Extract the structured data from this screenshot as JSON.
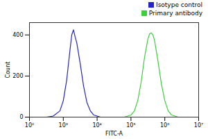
{
  "chart_data": {
    "type": "line",
    "x_label": "FITC-A",
    "y_label": "Count",
    "log": "x",
    "legend": "top-right",
    "xlim": [
      100,
      10000000
    ],
    "xticks": [
      {
        "value": 100,
        "label": "10²"
      },
      {
        "value": 1000,
        "label": "10³"
      },
      {
        "value": 10000,
        "label": "10⁴"
      },
      {
        "value": 100000,
        "label": "10⁵"
      },
      {
        "value": 1000000,
        "label": "10⁶"
      },
      {
        "value": 10000000,
        "label": "10⁷"
      }
    ],
    "ylim": [
      0,
      460
    ],
    "yticks": [
      0,
      200,
      400
    ],
    "series": [
      {
        "name": "Isotype control",
        "color": "#2424c8",
        "x": [
          316,
          501,
          794,
          1000,
          1259,
          1585,
          1778,
          1995,
          2239,
          2512,
          3162,
          3981,
          5012,
          6310,
          7943,
          12589
        ],
        "values": [
          0,
          5,
          30,
          80,
          180,
          330,
          400,
          425,
          390,
          360,
          260,
          150,
          70,
          30,
          10,
          0
        ]
      },
      {
        "name": "Primary antibody",
        "color": "#3ccf3c",
        "x": [
          63096,
          100000,
          125893,
          158489,
          199526,
          251189,
          316228,
          354813,
          398107,
          446684,
          501187,
          630957,
          794328,
          1000000,
          1258925,
          1584893,
          2511886
        ],
        "values": [
          0,
          10,
          30,
          80,
          170,
          290,
          380,
          405,
          410,
          400,
          370,
          270,
          160,
          80,
          30,
          10,
          0
        ]
      }
    ]
  }
}
